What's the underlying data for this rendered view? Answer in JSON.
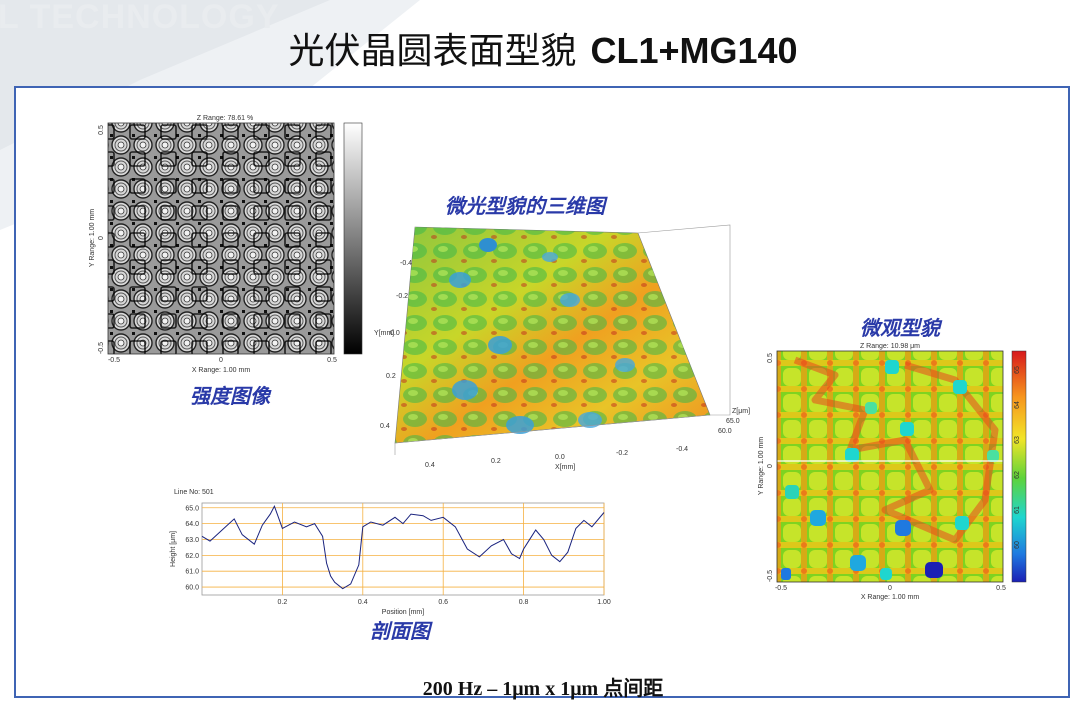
{
  "watermark": "L TECHNOLOGY",
  "slide": {
    "title_cn": "光伏晶圆表面型貌",
    "title_model": "CL1+MG140",
    "bottom_note": "200 Hz – 1μm x 1μm 点间距"
  },
  "intensity": {
    "caption": "强度图像",
    "z_range": "Z Range: 78.61 %",
    "x_range": "X Range: 1.00 mm",
    "y_range": "Y Range: 1.00 mm",
    "x_ticks": [
      "-0.5",
      "0",
      "0.5"
    ],
    "y_ticks": [
      "0.5",
      "0",
      "-0.5"
    ]
  },
  "view3d": {
    "caption": "微光型貌的三维图",
    "y_ticks": [
      "-0.4",
      "-0.2",
      "0.0",
      "0.2",
      "0.4"
    ],
    "x_ticks": [
      "0.4",
      "0.2",
      "0.0",
      "-0.2",
      "-0.4"
    ],
    "y_label": "Y[mm]",
    "x_label": "X[mm]",
    "z_label": "Z[μm]",
    "z_ticks": [
      "65.0",
      "60.0"
    ]
  },
  "micro": {
    "caption": "微观型貌",
    "z_range": "Z Range: 10.98 μm",
    "x_range": "X Range: 1.00 mm",
    "y_range": "Y Range: 1.00 mm",
    "x_ticks": [
      "-0.5",
      "0",
      "0.5"
    ],
    "y_ticks": [
      "0.5",
      "0",
      "-0.5"
    ],
    "colorbar_ticks": [
      "65",
      "64",
      "63",
      "62",
      "61",
      "60"
    ]
  },
  "profile": {
    "caption": "剖面图",
    "line_no": "Line No: 501",
    "xlabel": "Position [mm]",
    "ylabel": "Height [μm]",
    "chart_data": {
      "type": "line",
      "xlim": [
        0,
        1.0
      ],
      "ylim": [
        59.5,
        65.3
      ],
      "x_ticks": [
        0.2,
        0.4,
        0.6,
        0.8,
        1.0
      ],
      "x_tick_labels": [
        "0.2",
        "0.4",
        "0.6",
        "0.8",
        "1.00"
      ],
      "y_ticks": [
        60,
        61,
        62,
        63,
        64,
        65
      ],
      "y_tick_labels": [
        "60.0",
        "61.0",
        "62.0",
        "63.0",
        "64.0",
        "65.0"
      ],
      "grid": true,
      "series_color": "#1a237e",
      "x": [
        0.0,
        0.02,
        0.05,
        0.08,
        0.1,
        0.13,
        0.15,
        0.17,
        0.18,
        0.2,
        0.23,
        0.26,
        0.28,
        0.3,
        0.31,
        0.32,
        0.33,
        0.35,
        0.37,
        0.39,
        0.4,
        0.42,
        0.45,
        0.48,
        0.5,
        0.52,
        0.55,
        0.57,
        0.6,
        0.63,
        0.66,
        0.69,
        0.72,
        0.75,
        0.77,
        0.79,
        0.8,
        0.81,
        0.83,
        0.85,
        0.87,
        0.89,
        0.91,
        0.93,
        0.95,
        0.97,
        1.0
      ],
      "y": [
        63.2,
        62.9,
        63.6,
        64.3,
        63.3,
        62.7,
        63.9,
        64.6,
        65.1,
        63.7,
        64.1,
        63.8,
        64.0,
        63.2,
        61.5,
        60.7,
        60.3,
        59.9,
        60.2,
        61.4,
        63.8,
        64.1,
        63.9,
        64.4,
        64.0,
        64.6,
        64.5,
        64.2,
        64.4,
        63.8,
        62.4,
        61.9,
        62.6,
        63.0,
        62.1,
        61.8,
        62.4,
        62.8,
        63.6,
        63.0,
        62.0,
        61.6,
        62.2,
        63.7,
        64.2,
        63.8,
        64.7
      ]
    }
  }
}
